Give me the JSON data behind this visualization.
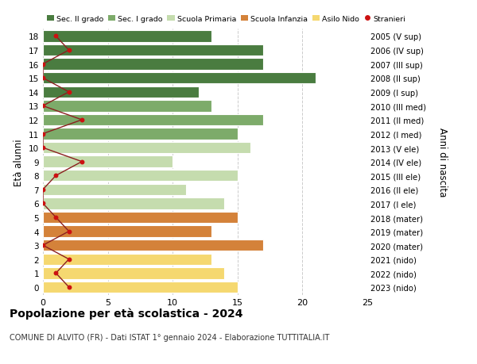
{
  "ages": [
    18,
    17,
    16,
    15,
    14,
    13,
    12,
    11,
    10,
    9,
    8,
    7,
    6,
    5,
    4,
    3,
    2,
    1,
    0
  ],
  "bar_values": [
    13,
    17,
    17,
    21,
    12,
    13,
    17,
    15,
    16,
    10,
    15,
    11,
    14,
    15,
    13,
    17,
    13,
    14,
    15
  ],
  "color_map": {
    "18": "#4a7c40",
    "17": "#4a7c40",
    "16": "#4a7c40",
    "15": "#4a7c40",
    "14": "#4a7c40",
    "13": "#7dab6a",
    "12": "#7dab6a",
    "11": "#7dab6a",
    "10": "#c5dcae",
    "9": "#c5dcae",
    "8": "#c5dcae",
    "7": "#c5dcae",
    "6": "#c5dcae",
    "5": "#d4823a",
    "4": "#d4823a",
    "3": "#d4823a",
    "2": "#f5d870",
    "1": "#f5d870",
    "0": "#f5d870"
  },
  "stranieri_x": {
    "18": 1,
    "17": 2,
    "16": 0,
    "15": 0,
    "14": 2,
    "13": 0,
    "12": 3,
    "11": 0,
    "10": 0,
    "9": 3,
    "8": 1,
    "7": 0,
    "6": 0,
    "5": 1,
    "4": 2,
    "3": 0,
    "2": 2,
    "1": 1,
    "0": 2
  },
  "right_labels": [
    "2005 (V sup)",
    "2006 (IV sup)",
    "2007 (III sup)",
    "2008 (II sup)",
    "2009 (I sup)",
    "2010 (III med)",
    "2011 (II med)",
    "2012 (I med)",
    "2013 (V ele)",
    "2014 (IV ele)",
    "2015 (III ele)",
    "2016 (II ele)",
    "2017 (I ele)",
    "2018 (mater)",
    "2019 (mater)",
    "2020 (mater)",
    "2021 (nido)",
    "2022 (nido)",
    "2023 (nido)"
  ],
  "legend_labels": [
    "Sec. II grado",
    "Sec. I grado",
    "Scuola Primaria",
    "Scuola Infanzia",
    "Asilo Nido",
    "Stranieri"
  ],
  "legend_colors": [
    "#4a7c40",
    "#7dab6a",
    "#c5dcae",
    "#d4823a",
    "#f5d870",
    "#cc1111"
  ],
  "title": "Popolazione per età scolastica - 2024",
  "subtitle": "COMUNE DI ALVITO (FR) - Dati ISTAT 1° gennaio 2024 - Elaborazione TUTTITALIA.IT",
  "ylabel_left": "Età alunni",
  "ylabel_right": "Anni di nascita",
  "xlim": [
    0,
    25
  ],
  "ylim_min": -0.55,
  "ylim_max": 18.55,
  "background_color": "#ffffff",
  "bar_height": 0.82,
  "grid_color": "#cccccc",
  "stranieri_line_color": "#8b2020",
  "stranieri_dot_color": "#cc1111"
}
